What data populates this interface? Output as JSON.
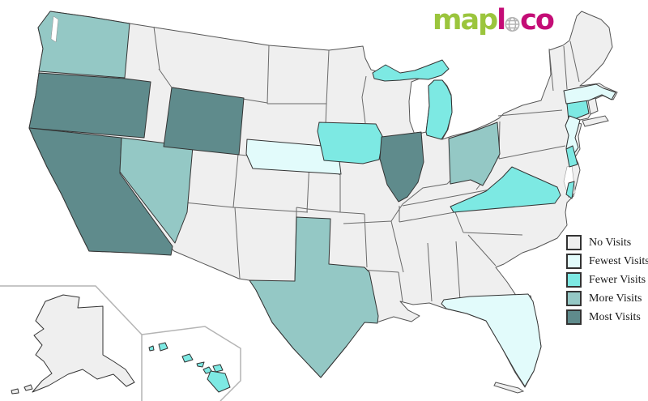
{
  "logo": {
    "green_text": "map",
    "magenta_text_1": "l",
    "globe_icon": "globe-o",
    "magenta_text_2": "co",
    "green_color": "#9bc53d",
    "magenta_color": "#c40d76",
    "globe_color": "#b3b3b3"
  },
  "legend": {
    "items": [
      {
        "level": "no",
        "label": "No Visits",
        "color": "#efefef"
      },
      {
        "level": "fewest",
        "label": "Fewest Visits",
        "color": "#e2fbfb"
      },
      {
        "level": "fewer",
        "label": "Fewer Visits",
        "color": "#7de9e3"
      },
      {
        "level": "more",
        "label": "More Visits",
        "color": "#94c8c5"
      },
      {
        "level": "most",
        "label": "Most Visits",
        "color": "#5f8b8c"
      }
    ],
    "swatch_border_color": "#333333",
    "text_color": "#1a1a1a"
  },
  "map": {
    "background_color": "#ffffff",
    "outline_color": "#555555",
    "inner_border_color": "#6a6a6a",
    "inset_border_color": "#b4b4b4",
    "state_stroke_color": "#333333",
    "level_colors": {
      "no": "#efefef",
      "fewest": "#e2fbfb",
      "fewer": "#7de9e3",
      "more": "#94c8c5",
      "most": "#5f8b8c"
    },
    "default_level": "no",
    "states": [
      {
        "id": "WA",
        "name": "Washington",
        "level": "more"
      },
      {
        "id": "OR",
        "name": "Oregon",
        "level": "most"
      },
      {
        "id": "CA",
        "name": "California",
        "level": "most"
      },
      {
        "id": "NV",
        "name": "Nevada",
        "level": "more"
      },
      {
        "id": "WY",
        "name": "Wyoming",
        "level": "most"
      },
      {
        "id": "NE",
        "name": "Nebraska",
        "level": "fewest"
      },
      {
        "id": "TX",
        "name": "Texas",
        "level": "more"
      },
      {
        "id": "IA",
        "name": "Iowa",
        "level": "fewer"
      },
      {
        "id": "IL",
        "name": "Illinois",
        "level": "most"
      },
      {
        "id": "MI",
        "name": "Michigan",
        "level": "fewer"
      },
      {
        "id": "OH",
        "name": "Ohio",
        "level": "more"
      },
      {
        "id": "VA",
        "name": "Virginia",
        "level": "fewer"
      },
      {
        "id": "CT",
        "name": "Connecticut",
        "level": "fewer"
      },
      {
        "id": "MA",
        "name": "Massachusetts",
        "level": "fewest"
      },
      {
        "id": "NJ",
        "name": "New Jersey",
        "level": "fewest"
      },
      {
        "id": "DE",
        "name": "Delaware",
        "level": "fewer"
      },
      {
        "id": "FL",
        "name": "Florida",
        "level": "fewest"
      },
      {
        "id": "HI",
        "name": "Hawaii",
        "level": "fewer"
      },
      {
        "id": "AK",
        "name": "Alaska",
        "level": "no"
      }
    ]
  }
}
